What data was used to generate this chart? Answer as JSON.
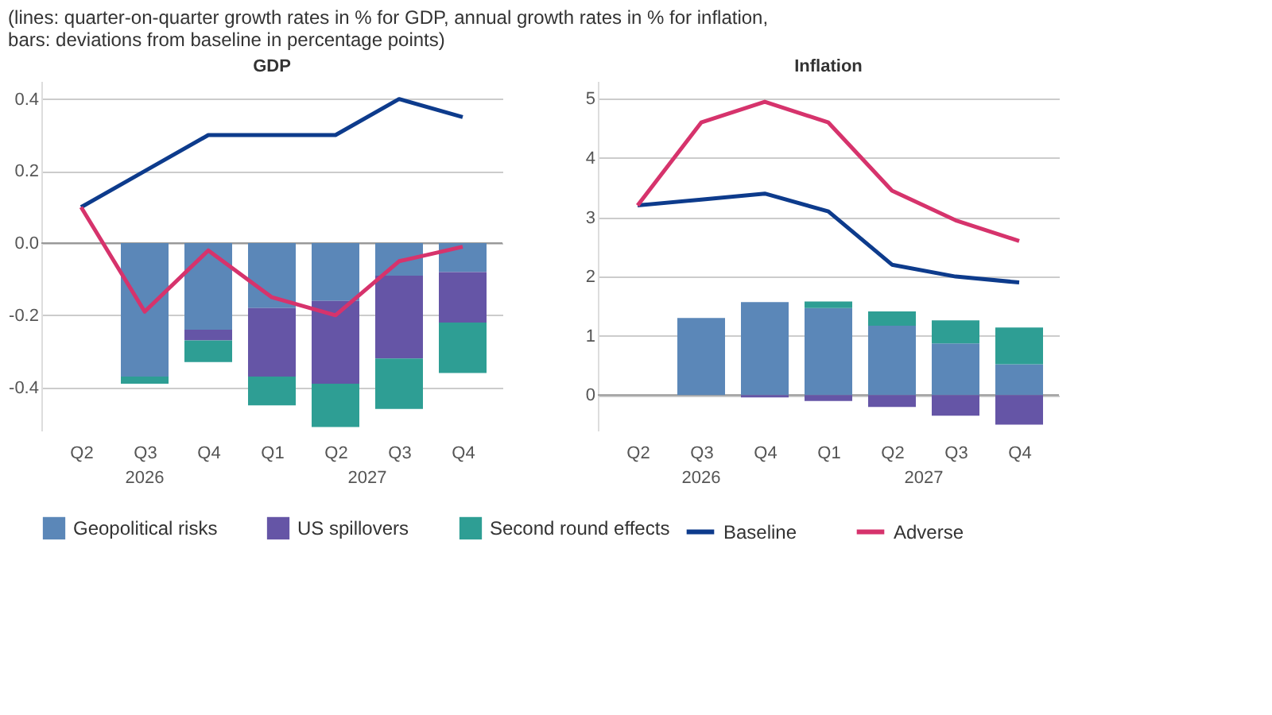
{
  "chart_data": [
    {
      "type": "bar",
      "title": "GDP",
      "subtitle": "(lines: quarter-on-quarter growth rates in % for GDP, annual growth rates in % for inflation, bars: deviations from baseline in percentage points)",
      "stacked": true,
      "grid": "y",
      "legend": "bottom",
      "categories": [
        "Q2",
        "Q3",
        "Q4",
        "Q1",
        "Q2",
        "Q3",
        "Q4"
      ],
      "annotations": [
        "2026",
        "2027"
      ],
      "ylim": [
        -0.52,
        0.45
      ],
      "yticks": [
        {
          "value": -0.4,
          "label": "-0.4"
        },
        {
          "value": -0.2,
          "label": "-0.2"
        },
        {
          "value": 0,
          "label": "0.0"
        },
        {
          "value": 0.2,
          "label": "0.2"
        },
        {
          "value": 0.4,
          "label": "0.4"
        }
      ],
      "series": [
        {
          "name": "Geopolitical risks",
          "type": "bar",
          "color": "#5b87b8",
          "values": [
            null,
            -0.37,
            -0.24,
            -0.18,
            -0.16,
            -0.09,
            -0.08
          ]
        },
        {
          "name": "US spillovers",
          "type": "bar",
          "color": "#6555a6",
          "values": [
            null,
            null,
            -0.03,
            -0.19,
            -0.23,
            -0.23,
            -0.14
          ]
        },
        {
          "name": "Second round effects",
          "type": "bar",
          "color": "#2e9e94",
          "values": [
            null,
            -0.02,
            -0.06,
            -0.08,
            -0.12,
            -0.14,
            -0.14
          ]
        },
        {
          "name": "Baseline",
          "type": "line",
          "color": "#0d3b8c",
          "values": [
            0.1,
            0.2,
            0.3,
            0.3,
            0.3,
            0.4,
            0.35
          ]
        },
        {
          "name": "Adverse",
          "type": "line",
          "color": "#d6336c",
          "values": [
            0.1,
            -0.19,
            -0.02,
            -0.15,
            -0.2,
            -0.05,
            -0.01
          ]
        }
      ]
    },
    {
      "type": "bar",
      "title": "Inflation",
      "stacked": true,
      "grid": "y",
      "categories": [
        "Q2",
        "Q3",
        "Q4",
        "Q1",
        "Q2",
        "Q3",
        "Q4"
      ],
      "annotations": [
        "2026",
        "2027"
      ],
      "ylim": [
        -0.6,
        5.3
      ],
      "yticks": [
        0,
        1,
        2,
        3,
        4,
        5
      ],
      "series": [
        {
          "name": "Geopolitical risks",
          "type": "bar",
          "color": "#5b87b8",
          "values": [
            null,
            1.3,
            1.57,
            1.47,
            1.17,
            0.87,
            0.52
          ]
        },
        {
          "name": "US spillovers",
          "type": "bar",
          "color": "#6555a6",
          "values": [
            null,
            null,
            -0.04,
            -0.1,
            -0.2,
            -0.35,
            -0.5
          ]
        },
        {
          "name": "Second round effects",
          "type": "bar",
          "color": "#2e9e94",
          "values": [
            null,
            null,
            null,
            0.11,
            0.24,
            0.39,
            0.62
          ]
        },
        {
          "name": "Baseline",
          "type": "line",
          "color": "#0d3b8c",
          "values": [
            3.2,
            3.3,
            3.4,
            3.1,
            2.2,
            2.0,
            1.9
          ]
        },
        {
          "name": "Adverse",
          "type": "line",
          "color": "#d6336c",
          "values": [
            3.2,
            4.6,
            4.95,
            4.6,
            3.45,
            2.95,
            2.6
          ]
        }
      ]
    }
  ]
}
